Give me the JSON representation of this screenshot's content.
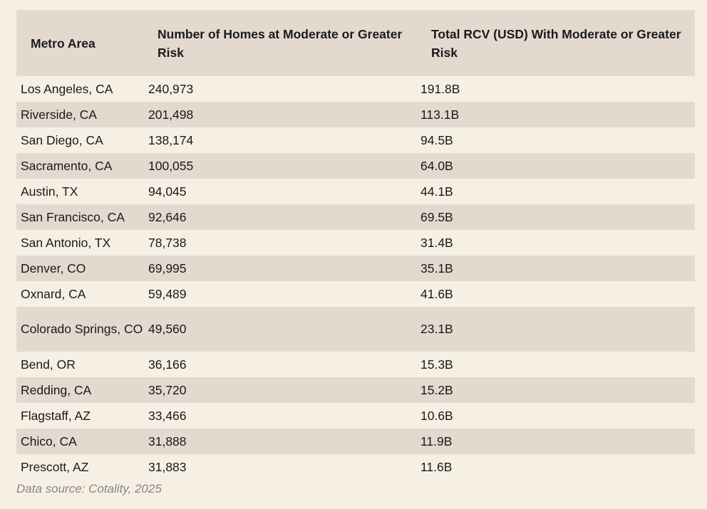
{
  "table": {
    "headers": {
      "metro": "Metro Area",
      "homes": "Number of Homes at Moderate or Greater Risk",
      "rcv": "Total RCV (USD) With Moderate or Greater Risk"
    },
    "rows": [
      {
        "metro": "Los Angeles, CA",
        "homes": "240,973",
        "rcv": "191.8B"
      },
      {
        "metro": "Riverside, CA",
        "homes": "201,498",
        "rcv": "113.1B"
      },
      {
        "metro": "San Diego, CA",
        "homes": "138,174",
        "rcv": "94.5B"
      },
      {
        "metro": "Sacramento, CA",
        "homes": "100,055",
        "rcv": "64.0B"
      },
      {
        "metro": "Austin, TX",
        "homes": "94,045",
        "rcv": "44.1B"
      },
      {
        "metro": "San Francisco, CA",
        "homes": "92,646",
        "rcv": "69.5B"
      },
      {
        "metro": "San Antonio, TX",
        "homes": "78,738",
        "rcv": "31.4B"
      },
      {
        "metro": "Denver, CO",
        "homes": "69,995",
        "rcv": "35.1B"
      },
      {
        "metro": "Oxnard, CA",
        "homes": "59,489",
        "rcv": "41.6B"
      },
      {
        "metro": "Colorado Springs, CO",
        "homes": "49,560",
        "rcv": "23.1B"
      },
      {
        "metro": "Bend, OR",
        "homes": "36,166",
        "rcv": "15.3B"
      },
      {
        "metro": "Redding, CA",
        "homes": "35,720",
        "rcv": "15.2B"
      },
      {
        "metro": "Flagstaff, AZ",
        "homes": "33,466",
        "rcv": "10.6B"
      },
      {
        "metro": "Chico, CA",
        "homes": "31,888",
        "rcv": "11.9B"
      },
      {
        "metro": "Prescott, AZ",
        "homes": "31,883",
        "rcv": "11.6B"
      }
    ]
  },
  "source": "Data source: Cotality, 2025",
  "colors": {
    "background": "#f6efe4",
    "stripe": "#e3d9cf",
    "text": "#1a1a1a",
    "source_text": "#8a8580"
  }
}
